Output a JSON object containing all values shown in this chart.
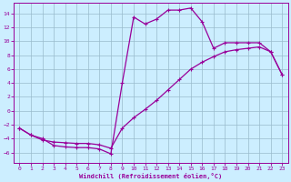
{
  "xlabel": "Windchill (Refroidissement éolien,°C)",
  "x_ticks": [
    0,
    1,
    2,
    3,
    4,
    5,
    6,
    7,
    8,
    9,
    10,
    11,
    12,
    13,
    14,
    15,
    16,
    17,
    18,
    19,
    20,
    21,
    22,
    23
  ],
  "y_ticks": [
    -6,
    -4,
    -2,
    0,
    2,
    4,
    6,
    8,
    10,
    12,
    14
  ],
  "xlim": [
    -0.5,
    23.5
  ],
  "ylim": [
    -7.5,
    15.5
  ],
  "line_color": "#990099",
  "bg_color": "#cceeff",
  "grid_color": "#99bbcc",
  "curve1_x": [
    0,
    1,
    2,
    3,
    4,
    5,
    6,
    7,
    8,
    9,
    10,
    11,
    12,
    13,
    14,
    15,
    16,
    17,
    18,
    19,
    20,
    21,
    22,
    23
  ],
  "curve1_y": [
    -2.5,
    -3.5,
    -4.0,
    -5.0,
    -5.2,
    -5.3,
    -5.3,
    -5.5,
    -6.2,
    4.0,
    13.5,
    12.5,
    13.2,
    14.5,
    14.5,
    14.8,
    12.8,
    9.0,
    9.8,
    9.8,
    9.8,
    9.8,
    8.5,
    5.2
  ],
  "curve2_x": [
    0,
    1,
    2,
    3,
    4,
    5,
    6,
    7,
    8,
    9,
    10,
    11,
    12,
    13,
    14,
    15,
    16,
    17,
    18,
    19,
    20,
    21,
    22,
    23
  ],
  "curve2_y": [
    -2.5,
    -3.5,
    -4.2,
    -4.5,
    -4.6,
    -4.7,
    -4.7,
    -4.9,
    -5.4,
    -2.5,
    -1.0,
    0.2,
    1.5,
    3.0,
    4.5,
    6.0,
    7.0,
    7.8,
    8.5,
    8.8,
    9.0,
    9.2,
    8.5,
    5.2
  ]
}
